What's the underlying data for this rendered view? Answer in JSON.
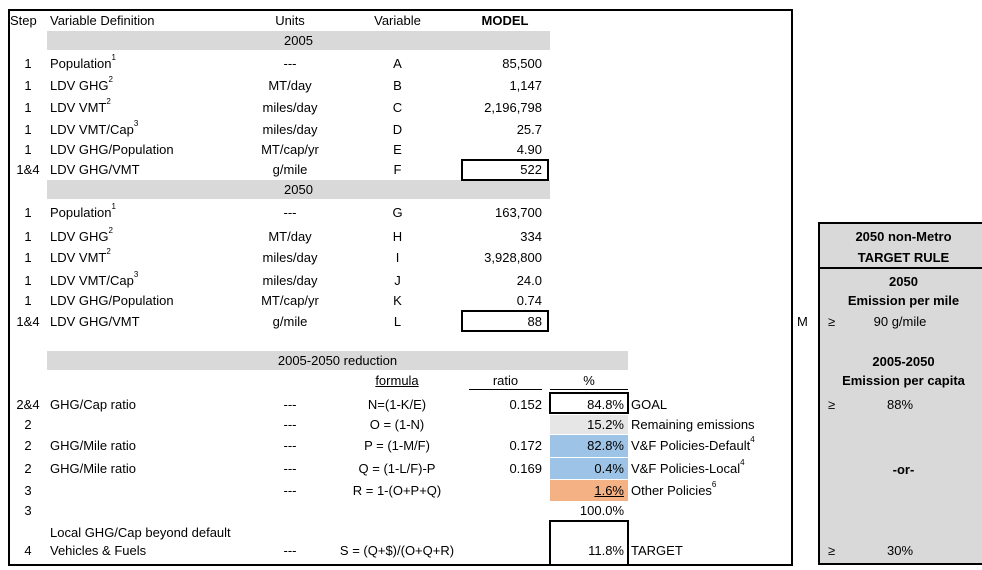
{
  "headers": {
    "step": "Step",
    "definition": "Variable Definition",
    "units": "Units",
    "variable": "Variable",
    "model": "MODEL"
  },
  "sections": {
    "y2005": "2005",
    "y2050": "2050",
    "reduction": "2005-2050 reduction"
  },
  "rows2005": [
    {
      "step": "1",
      "def": "Population",
      "sup": "1",
      "units": "---",
      "var": "A",
      "val": "85,500"
    },
    {
      "step": "1",
      "def": "LDV GHG",
      "sup": "2",
      "units": "MT/day",
      "var": "B",
      "val": "1,147"
    },
    {
      "step": "1",
      "def": "LDV VMT",
      "sup": "2",
      "units": "miles/day",
      "var": "C",
      "val": "2,196,798"
    },
    {
      "step": "1",
      "def": "LDV VMT/Cap",
      "sup": "3",
      "units": "miles/day",
      "var": "D",
      "val": "25.7"
    },
    {
      "step": "1",
      "def": "LDV GHG/Population",
      "sup": "",
      "units": "MT/cap/yr",
      "var": "E",
      "val": "4.90"
    },
    {
      "step": "1&4",
      "def": "LDV GHG/VMT",
      "sup": "",
      "units": "g/mile",
      "var": "F",
      "val": "522"
    }
  ],
  "rows2050": [
    {
      "step": "1",
      "def": "Population",
      "sup": "1",
      "units": "---",
      "var": "G",
      "val": "163,700"
    },
    {
      "step": "1",
      "def": "LDV GHG",
      "sup": "2",
      "units": "MT/day",
      "var": "H",
      "val": "334"
    },
    {
      "step": "1",
      "def": "LDV VMT",
      "sup": "2",
      "units": "miles/day",
      "var": "I",
      "val": "3,928,800"
    },
    {
      "step": "1",
      "def": "LDV VMT/Cap",
      "sup": "3",
      "units": "miles/day",
      "var": "J",
      "val": "24.0"
    },
    {
      "step": "1",
      "def": "LDV GHG/Population",
      "sup": "",
      "units": "MT/cap/yr",
      "var": "K",
      "val": "0.74"
    },
    {
      "step": "1&4",
      "def": "LDV GHG/VMT",
      "sup": "",
      "units": "g/mile",
      "var": "L",
      "val": "88"
    }
  ],
  "reductionHeaders": {
    "formula": "formula",
    "ratio": "ratio",
    "pct": "%"
  },
  "reductionRows": [
    {
      "step": "2&4",
      "def": "GHG/Cap ratio",
      "units": "---",
      "formula": "N=(1-K/E)",
      "ratio": "0.152",
      "pct": "84.8%",
      "note": "GOAL",
      "sup": ""
    },
    {
      "step": "2",
      "def": "",
      "units": "---",
      "formula": "O = (1-N)",
      "ratio": "",
      "pct": "15.2%",
      "note": "Remaining emissions",
      "sup": ""
    },
    {
      "step": "2",
      "def": "GHG/Mile ratio",
      "units": "---",
      "formula": "P = (1-M/F)",
      "ratio": "0.172",
      "pct": "82.8%",
      "note": "V&F Policies-Default",
      "sup": "4"
    },
    {
      "step": "2",
      "def": "GHG/Mile ratio",
      "units": "---",
      "formula": "Q = (1-L/F)-P",
      "ratio": "0.169",
      "pct": "0.4%",
      "note": "V&F Policies-Local",
      "sup": "4"
    },
    {
      "step": "3",
      "def": "",
      "units": "---",
      "formula": "R = 1-(O+P+Q)",
      "ratio": "",
      "pct": "1.6%",
      "note": "Other Policies",
      "sup": "6"
    },
    {
      "step": "3",
      "def": "",
      "units": "",
      "formula": "",
      "ratio": "",
      "pct": "100.0%",
      "note": "",
      "sup": ""
    },
    {
      "step": "4",
      "def1": "Local GHG/Cap beyond default",
      "def2": "Vehicles & Fuels",
      "units": "---",
      "formula": "S = (Q+$)/(O+Q+R)",
      "ratio": "",
      "pct": "11.8%",
      "note": "TARGET",
      "sup": ""
    }
  ],
  "mLabel": "M",
  "side": {
    "title1": "2050 non-Metro",
    "title2": "TARGET RULE",
    "h1a": "2050",
    "h1b": "Emission per mile",
    "ge": "≥",
    "v1": "90 g/mile",
    "h2a": "2005-2050",
    "h2b": "Emission per capita",
    "v2": "88%",
    "or": "-or-",
    "v3": "30%"
  },
  "colors": {
    "band": "#d9d9d9",
    "blue": "#9dc3e6",
    "lightgray": "#e7e6e6",
    "orange": "#f4b183"
  }
}
